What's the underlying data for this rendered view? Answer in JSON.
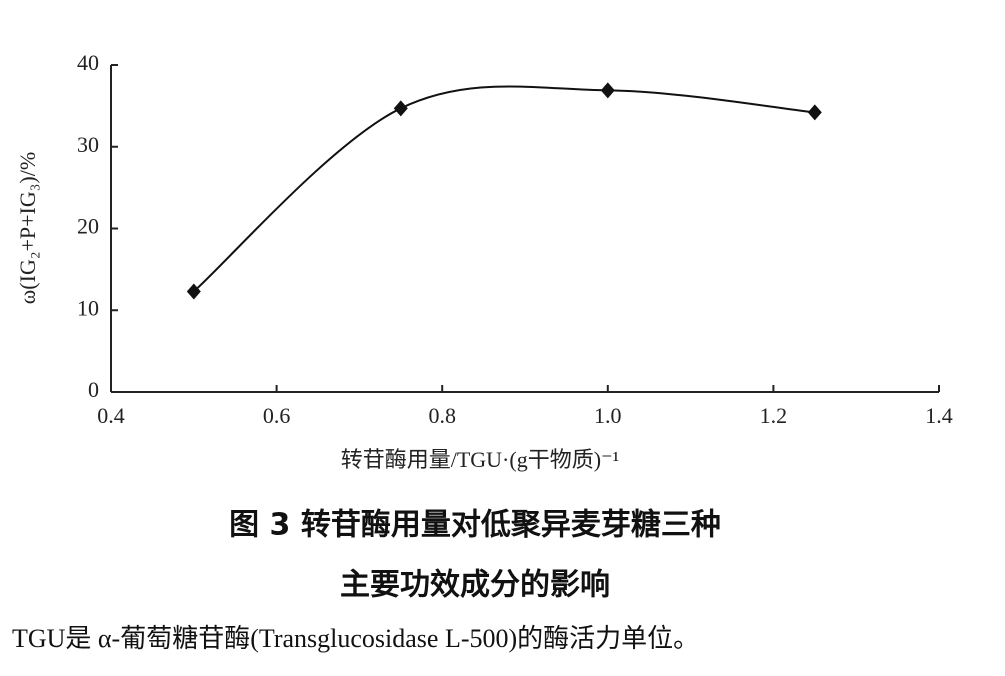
{
  "chart_data": {
    "type": "line",
    "x": [
      0.5,
      0.75,
      1.0,
      1.25
    ],
    "values": [
      12.3,
      34.7,
      36.9,
      34.2
    ],
    "color": "#111111",
    "xlabel": "转苷酶用量/TGU·(g干物质)⁻¹",
    "ylabel": "ω(IG₂+P+IG₃)/%",
    "xlim": [
      0.4,
      1.4
    ],
    "xticks": [
      0.4,
      0.6,
      0.8,
      {
        "value": 1,
        "label": "1.0"
      },
      1.2,
      1.4
    ],
    "ylim": [
      0,
      40
    ],
    "yticks": [
      0,
      10,
      20,
      30,
      40
    ],
    "grid": false
  },
  "figure_caption": {
    "lines": [
      "图 3  转苷酶用量对低聚异麦芽糖三种",
      "主要功效成分的影响"
    ],
    "note": "TGU是 α-葡萄糖苷酶(Transglucosidase L-500)的酶活力单位。"
  }
}
